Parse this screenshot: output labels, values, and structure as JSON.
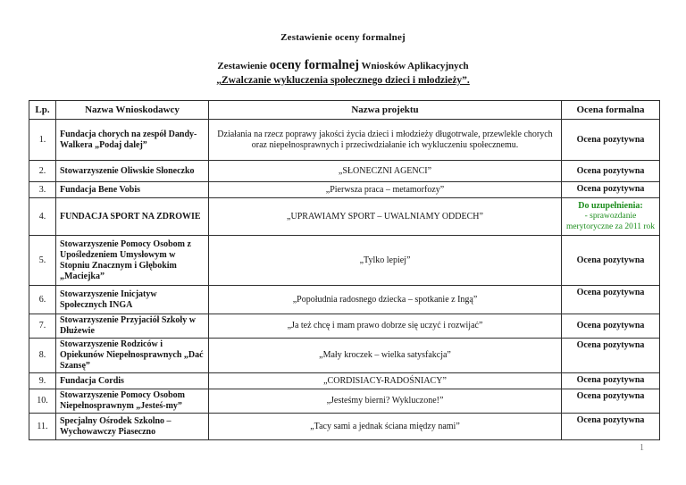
{
  "document": {
    "title": "Zestawienie oceny formalnej",
    "subtitle": {
      "prefix": "Zestawienie ",
      "emphasis": "oceny formalnej",
      "suffix": " Wniosków Aplikacyjnych",
      "line2": "„Zwalczanie wykluczenia społecznego dzieci i młodzieży”."
    },
    "page_number": "1"
  },
  "colors": {
    "supplement_text": "#1e8e1e",
    "table_border": "#2e2e2e"
  },
  "table": {
    "headers": [
      "Lp.",
      "Nazwa Wnioskodawcy",
      "Nazwa projektu",
      "Ocena formalna"
    ],
    "rows": [
      {
        "lp": "1.",
        "applicant": "Fundacja chorych na zespół Dandy-Walkera „Podaj dalej”",
        "project": "Działania na rzecz poprawy jakości życia dzieci i młodzieży długotrwale, przewlekle chorych oraz niepełnosprawnych i przeciwdziałanie ich wykluczeniu społecznemu.",
        "assessment": "Ocena pozytywna",
        "assessment_type": "positive"
      },
      {
        "lp": "2.",
        "applicant": "Stowarzyszenie Oliwskie Słoneczko",
        "project": "„SŁONECZNI AGENCI”",
        "assessment": "Ocena pozytywna",
        "assessment_type": "positive"
      },
      {
        "lp": "3.",
        "applicant": "Fundacja Bene Vobis",
        "project": "„Pierwsza praca – metamorfozy”",
        "assessment": "Ocena pozytywna",
        "assessment_type": "positive"
      },
      {
        "lp": "4.",
        "applicant": "FUNDACJA SPORT NA ZDROWIE",
        "project": "„UPRAWIAMY SPORT – UWALNIAMY ODDECH”",
        "assessment": "Do uzupełnienia:",
        "assessment_detail": "- sprawozdanie merytoryczne za 2011 rok",
        "assessment_type": "supplement"
      },
      {
        "lp": "5.",
        "applicant": "Stowarzyszenie Pomocy Osobom z Upośledzeniem Umysłowym w Stopniu Znacznym i Głębokim „Maciejka”",
        "project": "„Tylko lepiej”",
        "assessment": "Ocena pozytywna",
        "assessment_type": "positive"
      },
      {
        "lp": "6.",
        "applicant": "Stowarzyszenie Inicjatyw Społecznych INGA",
        "project": "„Popołudnia radosnego dziecka – spotkanie z Ingą”",
        "assessment": "Ocena pozytywna",
        "assessment_type": "positive"
      },
      {
        "lp": "7.",
        "applicant": "Stowarzyszenie Przyjaciół Szkoły w Dłużewie",
        "project": "„Ja też chcę i mam prawo dobrze się uczyć i rozwijać”",
        "assessment": "Ocena pozytywna",
        "assessment_type": "positive"
      },
      {
        "lp": "8.",
        "applicant": "Stowarzyszenie Rodziców i Opiekunów Niepełnosprawnych „Dać Szansę”",
        "project": "„Mały kroczek – wielka satysfakcja”",
        "assessment": "Ocena pozytywna",
        "assessment_type": "positive"
      },
      {
        "lp": "9.",
        "applicant": "Fundacja Cordis",
        "project": "„CORDISIACY-RADOŚNIACY”",
        "assessment": "Ocena pozytywna",
        "assessment_type": "positive"
      },
      {
        "lp": "10.",
        "applicant": "Stowarzyszenie Pomocy Osobom Niepełnosprawnym „Jesteś-my”",
        "project": "„Jesteśmy bierni? Wykluczone!”",
        "assessment": "Ocena pozytywna",
        "assessment_type": "positive"
      },
      {
        "lp": "11.",
        "applicant": "Specjalny Ośrodek Szkolno – Wychowawczy Piaseczno",
        "project": "„Tacy sami a jednak ściana między nami”",
        "assessment": "Ocena pozytywna",
        "assessment_type": "positive"
      }
    ]
  }
}
